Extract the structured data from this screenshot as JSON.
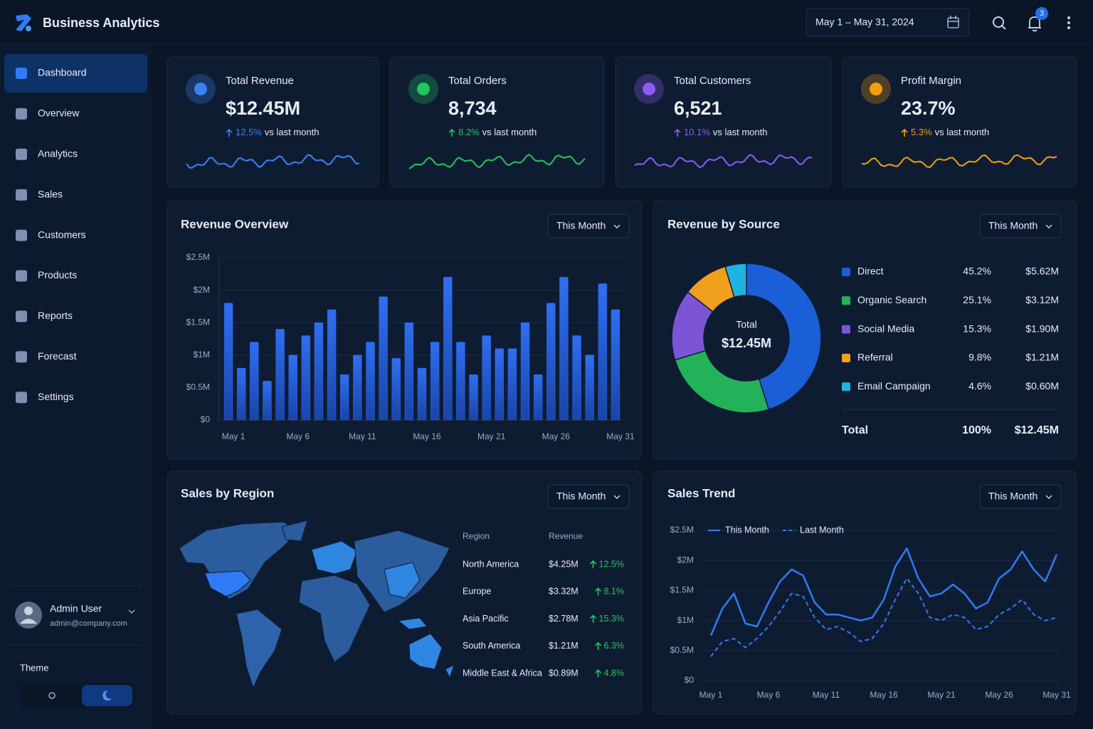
{
  "header": {
    "title": "Business Analytics",
    "date_range": "May 1 – May 31, 2024",
    "notifications": 3
  },
  "sidebar": {
    "nav": [
      "Dashboard",
      "Overview",
      "Analytics",
      "Sales",
      "Customers",
      "Products",
      "Reports",
      "Forecast",
      "Settings"
    ],
    "active_index": 0,
    "user": {
      "name": "Admin User",
      "email": "admin@company.com"
    },
    "theme_label": "Theme"
  },
  "kpis": [
    {
      "title": "Total Revenue",
      "value": "$12.45M",
      "change": "12.5%",
      "note": "vs last month",
      "color": "#3b82f6"
    },
    {
      "title": "Total Orders",
      "value": "8,734",
      "change": "8.2%",
      "note": "vs last month",
      "color": "#22c55e"
    },
    {
      "title": "Total Customers",
      "value": "6,521",
      "change": "10.1%",
      "note": "vs last month",
      "color": "#8b5cf6"
    },
    {
      "title": "Profit Margin",
      "value": "23.7%",
      "change": "5.3%",
      "note": "vs last month",
      "color": "#f59e0b"
    }
  ],
  "revenue_overview": {
    "type": "bar",
    "title": "Revenue Overview",
    "filter": "This Month",
    "color": "#2563eb",
    "grid": true,
    "categories": [
      "May 1",
      null,
      null,
      null,
      null,
      "May 6",
      null,
      null,
      null,
      null,
      "May 11",
      null,
      null,
      null,
      null,
      "May 16",
      null,
      null,
      null,
      null,
      "May 21",
      null,
      null,
      null,
      null,
      "May 26",
      null,
      null,
      null,
      null,
      "May 31"
    ],
    "values": [
      1.8,
      0.8,
      1.2,
      0.6,
      1.4,
      1.0,
      1.3,
      1.5,
      1.7,
      0.7,
      1.0,
      1.2,
      1.9,
      0.95,
      1.5,
      0.8,
      1.2,
      2.2,
      1.2,
      0.7,
      1.3,
      1.1,
      1.1,
      1.5,
      0.7,
      1.8,
      2.2,
      1.3,
      1.0,
      2.1,
      1.7
    ],
    "ylim": [
      0,
      2.5
    ],
    "yticks": [
      {
        "value": 0,
        "label": "$0"
      },
      {
        "value": 0.5,
        "label": "$0.5M"
      },
      {
        "value": 1,
        "label": "$1M"
      },
      {
        "value": 1.5,
        "label": "$1.5M"
      },
      {
        "value": 2,
        "label": "$2M"
      },
      {
        "value": 2.5,
        "label": "$2.5M"
      }
    ]
  },
  "revenue_by_source": {
    "type": "donut",
    "title": "Revenue by Source",
    "filter": "This Month",
    "categories": [
      "Direct",
      "Organic Search",
      "Social Media",
      "Referral",
      "Email Campaign"
    ],
    "values": [
      45.2,
      25.1,
      15.3,
      9.8,
      4.6
    ],
    "value_labels": [
      "45.2%",
      "25.1%",
      "15.3%",
      "9.8%",
      "4.6%"
    ],
    "amount_labels": [
      "$5.62M",
      "$3.12M",
      "$1.90M",
      "$1.21M",
      "$0.60M"
    ],
    "colors": [
      "#1a5fd8",
      "#22b35a",
      "#7b55d6",
      "#f0a01c",
      "#1fb3e0"
    ],
    "center_label": "Total",
    "center_value": "$12.45M",
    "total": {
      "label": "Total",
      "percent": "100%",
      "amount": "$12.45M"
    }
  },
  "sales_by_region": {
    "title": "Sales by Region",
    "filter": "This Month",
    "columns": [
      "Region",
      "Revenue"
    ],
    "rows": [
      [
        "North America",
        "$4.25M",
        "12.5%"
      ],
      [
        "Europe",
        "$3.32M",
        "8.1%"
      ],
      [
        "Asia Pacific",
        "$2.78M",
        "15.3%"
      ],
      [
        "South America",
        "$1.21M",
        "6.3%"
      ],
      [
        "Middle East & Africa",
        "$0.89M",
        "4.8%"
      ]
    ]
  },
  "sales_trend": {
    "type": "line",
    "title": "Sales Trend",
    "filter": "This Month",
    "grid": true,
    "categories": [
      "May 1",
      null,
      null,
      null,
      null,
      "May 6",
      null,
      null,
      null,
      null,
      "May 11",
      null,
      null,
      null,
      null,
      "May 16",
      null,
      null,
      null,
      null,
      "May 21",
      null,
      null,
      null,
      null,
      "May 26",
      null,
      null,
      null,
      null,
      "May 31"
    ],
    "series": [
      {
        "name": "This Month",
        "color": "#2f7bf5",
        "line_style": "solid",
        "values": [
          0.75,
          1.2,
          1.45,
          0.95,
          0.9,
          1.3,
          1.65,
          1.85,
          1.75,
          1.3,
          1.1,
          1.1,
          1.05,
          1.0,
          1.05,
          1.35,
          1.9,
          2.2,
          1.7,
          1.4,
          1.45,
          1.6,
          1.45,
          1.2,
          1.3,
          1.7,
          1.85,
          2.15,
          1.85,
          1.65,
          2.1
        ]
      },
      {
        "name": "Last Month",
        "color": "#2f7bf5",
        "line_style": "dashed",
        "values": [
          0.4,
          0.65,
          0.7,
          0.55,
          0.7,
          0.9,
          1.15,
          1.45,
          1.4,
          1.05,
          0.85,
          0.9,
          0.8,
          0.65,
          0.7,
          0.95,
          1.35,
          1.7,
          1.45,
          1.05,
          1.0,
          1.1,
          1.05,
          0.85,
          0.9,
          1.1,
          1.2,
          1.35,
          1.1,
          1.0,
          1.05
        ]
      }
    ],
    "ylim": [
      0,
      2.5
    ],
    "yticks": [
      {
        "value": 0,
        "label": "$0"
      },
      {
        "value": 0.5,
        "label": "$0.5M"
      },
      {
        "value": 1,
        "label": "$1M"
      },
      {
        "value": 1.5,
        "label": "$1.5M"
      },
      {
        "value": 2,
        "label": "$2M"
      },
      {
        "value": 2.5,
        "label": "$2.5M"
      }
    ]
  }
}
